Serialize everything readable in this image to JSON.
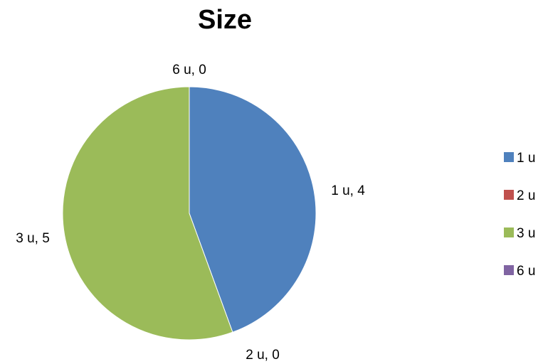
{
  "chart_data": {
    "type": "pie",
    "title": "Size",
    "categories": [
      "1 u",
      "2 u",
      "3 u",
      "6 u"
    ],
    "values": [
      4,
      0,
      5,
      0
    ],
    "data_labels": [
      "1 u, 4",
      "2 u, 0",
      "3 u, 5",
      "6 u, 0"
    ],
    "colors": [
      "#4f81bd",
      "#c0504d",
      "#9bbb59",
      "#8064a2"
    ],
    "start_angle": "12 o'clock",
    "direction": "clockwise",
    "legend": "right"
  }
}
